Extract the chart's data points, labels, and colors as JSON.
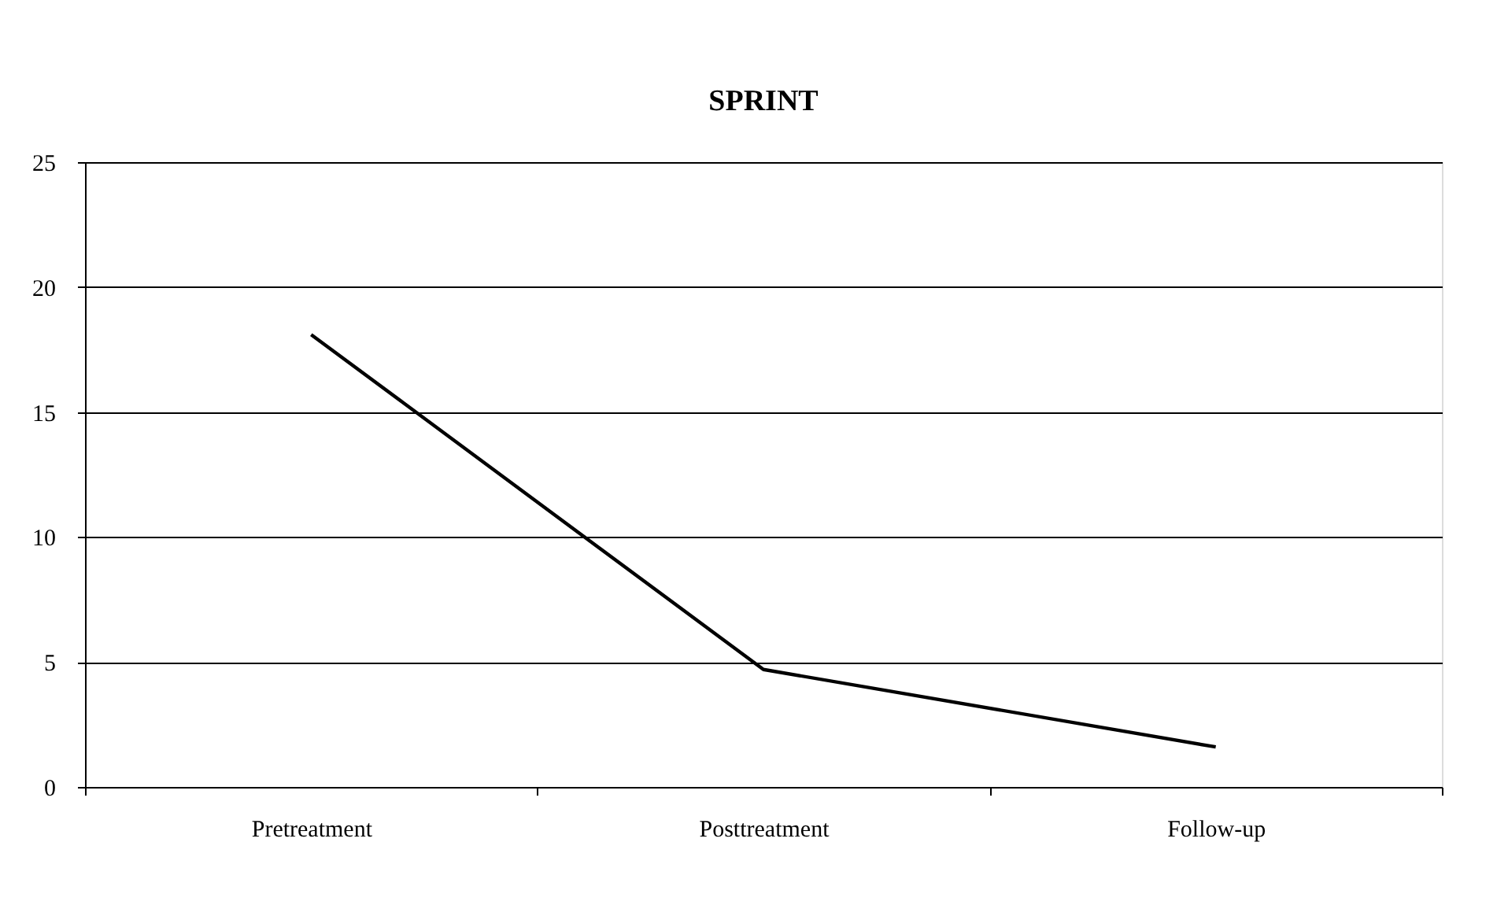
{
  "chart_data": {
    "type": "line",
    "title": "SPRINT",
    "categories": [
      "Pretreatment",
      "Posttreatment",
      "Follow-up"
    ],
    "series": [
      {
        "color": "#000000",
        "values": [
          18.1,
          4.7,
          1.6
        ]
      }
    ],
    "ylim": [
      0,
      25
    ],
    "yticks": [
      0,
      5,
      10,
      15,
      20,
      25
    ],
    "grid": "y",
    "marker": "none",
    "line_style": "solid"
  }
}
